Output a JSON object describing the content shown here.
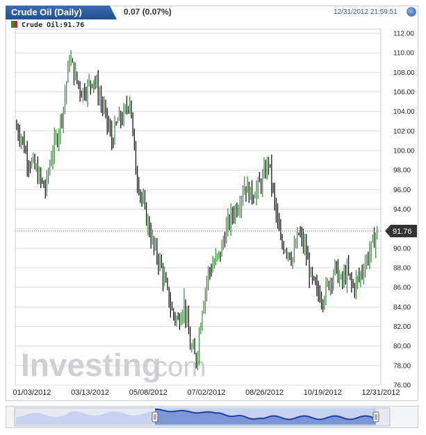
{
  "header": {
    "title": "Crude Oil (Daily)",
    "change": "0.07 (0.07%)",
    "timestamp": "12/31/2012 21:59:51",
    "refresh_icon": "refresh-icon"
  },
  "legend": {
    "label": "Crude Oil:91.76"
  },
  "colors": {
    "up": "#2e8b2e",
    "down": "#000000",
    "grid": "#d9dbe0",
    "nav_fill": "#7d97d6",
    "nav_line": "#1c3fa6",
    "nav_bg_fill": "#c7d3ee"
  },
  "watermark": {
    "brand": "Investing",
    "suffix": ".com"
  },
  "chart_data": {
    "type": "line",
    "title": "Crude Oil (Daily)",
    "x_tick_labels": [
      "01/03/2012",
      "03/13/2012",
      "05/08/2012",
      "07/02/2012",
      "08/26/2012",
      "10/19/2012",
      "12/31/2012"
    ],
    "y_ticks": [
      76,
      78,
      80,
      82,
      84,
      86,
      88,
      90,
      92,
      94,
      96,
      98,
      100,
      102,
      104,
      106,
      108,
      110,
      112
    ],
    "ylim": [
      76,
      112
    ],
    "last_value": 91.76,
    "last_value_label": "91.76",
    "series": [
      {
        "values": [
          102.5,
          101.5,
          99.2,
          98.5,
          97.2,
          96.0,
          99.5,
          101.5,
          104.5,
          109.5,
          107.5,
          106.0,
          106.5,
          107.5,
          105.5,
          103.5,
          101.0,
          103.0,
          103.5,
          105.5,
          98.0,
          95.0,
          92.5,
          90.0,
          88.5,
          86.0,
          83.5,
          82.5,
          84.5,
          80.0,
          78.5,
          84.0,
          87.5,
          88.5,
          89.5,
          92.0,
          93.5,
          94.5,
          96.5,
          95.5,
          96.0,
          97.0,
          99.0,
          94.5,
          90.5,
          90.0,
          89.0,
          91.5,
          90.0,
          87.0,
          85.5,
          85.0,
          86.5,
          88.0,
          86.5,
          87.5,
          86.0,
          87.0,
          88.5,
          90.0,
          91.76
        ]
      }
    ]
  }
}
